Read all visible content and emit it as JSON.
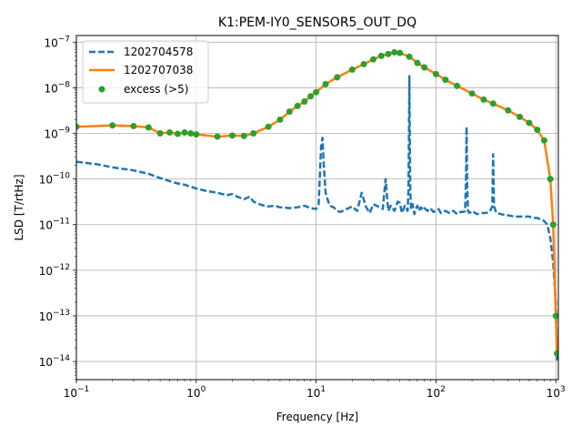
{
  "colors": {
    "reference": "#1f77b4",
    "current": "#ff7f0e",
    "excess": "#2ca02c",
    "grid": "#b0b0b0",
    "axes": "#000000",
    "background": "#ffffff"
  },
  "chart_data": {
    "type": "line",
    "title": "K1:PEM-IY0_SENSOR5_OUT_DQ",
    "xlabel": "Frequency [Hz]",
    "ylabel": "LSD [T/rtHz]",
    "xscale": "log",
    "yscale": "log",
    "xlim": [
      0.1,
      1050
    ],
    "ylim": [
      4e-15,
      1.4e-07
    ],
    "grid": true,
    "legend_position": "top-left",
    "xticks": [
      {
        "value": 0.1,
        "base": "10",
        "exp": "−1"
      },
      {
        "value": 1,
        "base": "10",
        "exp": "0"
      },
      {
        "value": 10,
        "base": "10",
        "exp": "1"
      },
      {
        "value": 100,
        "base": "10",
        "exp": "2"
      },
      {
        "value": 1000,
        "base": "10",
        "exp": "3"
      }
    ],
    "yticks": [
      {
        "value": 1e-14,
        "base": "10",
        "exp": "−14"
      },
      {
        "value": 1e-13,
        "base": "10",
        "exp": "−13"
      },
      {
        "value": 1e-12,
        "base": "10",
        "exp": "−12"
      },
      {
        "value": 1e-11,
        "base": "10",
        "exp": "−11"
      },
      {
        "value": 1e-10,
        "base": "10",
        "exp": "−10"
      },
      {
        "value": 1e-09,
        "base": "10",
        "exp": "−9"
      },
      {
        "value": 1e-08,
        "base": "10",
        "exp": "−8"
      },
      {
        "value": 1e-07,
        "base": "10",
        "exp": "−7"
      }
    ],
    "series": [
      {
        "name": "1202704578",
        "style": "dashed",
        "x": [
          0.1,
          0.15,
          0.2,
          0.3,
          0.4,
          0.5,
          0.6,
          0.7,
          0.8,
          0.9,
          1,
          1.2,
          1.5,
          1.8,
          2,
          2.2,
          2.5,
          2.8,
          3,
          3.5,
          4,
          4.5,
          5,
          6,
          7,
          8,
          9,
          10,
          10.5,
          11,
          11.3,
          11.6,
          12,
          12.5,
          13,
          14,
          15,
          16,
          18,
          20,
          22,
          24,
          26,
          28,
          30,
          33,
          36,
          38,
          40,
          42,
          45,
          48,
          50,
          52,
          55,
          58,
          59,
          60,
          61,
          62,
          64,
          66,
          68,
          70,
          72,
          75,
          78,
          80,
          85,
          90,
          95,
          100,
          105,
          110,
          115,
          120,
          130,
          140,
          150,
          160,
          170,
          175,
          178,
          180,
          182,
          185,
          190,
          200,
          220,
          240,
          260,
          280,
          295,
          300,
          305,
          320,
          350,
          380,
          400,
          450,
          500,
          550,
          600,
          650,
          700,
          750,
          800,
          850,
          900,
          950,
          1000,
          1024
        ],
        "y": [
          2.4e-10,
          2.1e-10,
          1.8e-10,
          1.55e-10,
          1.3e-10,
          1.05e-10,
          9e-11,
          8e-11,
          7.5e-11,
          6.8e-11,
          6.2e-11,
          5.5e-11,
          5e-11,
          4.4e-11,
          4.7e-11,
          4.1e-11,
          3.6e-11,
          4.1e-11,
          3.2e-11,
          2.7e-11,
          2.5e-11,
          2.6e-11,
          2.4e-11,
          2.3e-11,
          2.4e-11,
          2.6e-11,
          2.3e-11,
          2.2e-11,
          2.8e-11,
          5e-10,
          8e-10,
          2e-10,
          5e-11,
          3.5e-11,
          2.6e-11,
          2.4e-11,
          2e-11,
          1.9e-11,
          2.2e-11,
          2.5e-11,
          2e-11,
          5e-11,
          2.5e-11,
          1.8e-11,
          2.8e-11,
          2.5e-11,
          2.2e-11,
          1e-10,
          2e-11,
          2.6e-11,
          2e-11,
          3.2e-11,
          3e-11,
          1.8e-11,
          2.6e-11,
          2e-11,
          6e-11,
          1.8e-08,
          6e-11,
          2.2e-11,
          2.8e-11,
          1.7e-11,
          2.2e-11,
          2.6e-11,
          2e-11,
          2.4e-11,
          2.1e-11,
          2.3e-11,
          2e-11,
          2.3e-11,
          1.9e-11,
          2e-11,
          2.2e-11,
          1.8e-11,
          1.9e-11,
          2e-11,
          1.8e-11,
          2e-11,
          1.7e-11,
          1.9e-11,
          1.9e-11,
          2e-11,
          9e-11,
          1.4e-09,
          9e-11,
          2e-11,
          1.8e-11,
          2e-11,
          1.7e-11,
          1.8e-11,
          1.8e-11,
          1.9e-11,
          2.5e-11,
          3.5e-10,
          2.5e-11,
          1.8e-11,
          1.7e-11,
          1.6e-11,
          1.6e-11,
          1.5e-11,
          1.5e-11,
          1.5e-11,
          1.5e-11,
          1.4e-11,
          1.4e-11,
          1.3e-11,
          1.2e-11,
          1e-11,
          5e-12,
          1.5e-12,
          2e-13,
          1e-14
        ]
      },
      {
        "name": "1202707038",
        "style": "solid",
        "x": [
          0.1,
          0.2,
          0.3,
          0.4,
          0.5,
          0.6,
          0.7,
          0.8,
          0.9,
          1,
          1.5,
          2,
          2.5,
          3,
          4,
          5,
          6,
          7,
          8,
          9,
          10,
          12,
          15,
          20,
          25,
          30,
          35,
          40,
          45,
          50,
          60,
          70,
          80,
          100,
          120,
          150,
          200,
          250,
          300,
          400,
          500,
          600,
          700,
          800,
          900,
          950,
          1000,
          1024
        ],
        "y": [
          1.4e-09,
          1.5e-09,
          1.45e-09,
          1.35e-09,
          1e-09,
          1.05e-09,
          9.8e-10,
          1.05e-09,
          1e-09,
          9.5e-10,
          8.5e-10,
          9e-10,
          8.8e-10,
          1e-09,
          1.4e-09,
          2e-09,
          3e-09,
          4e-09,
          5e-09,
          6.5e-09,
          8e-09,
          1.2e-08,
          1.7e-08,
          2.5e-08,
          3.3e-08,
          4.2e-08,
          5e-08,
          5.5e-08,
          6e-08,
          5.8e-08,
          4.8e-08,
          3.5e-08,
          2.8e-08,
          2e-08,
          1.5e-08,
          1.1e-08,
          7.5e-09,
          5.5e-09,
          4.5e-09,
          3.2e-09,
          2.3e-09,
          1.7e-09,
          1.2e-09,
          7e-10,
          1e-10,
          1e-11,
          1e-13,
          1.5e-14
        ]
      },
      {
        "name": "excess (>5)",
        "style": "points",
        "x": [
          0.1,
          0.2,
          0.3,
          0.4,
          0.5,
          0.6,
          0.7,
          0.8,
          0.9,
          1,
          1.5,
          2,
          2.5,
          3,
          4,
          5,
          6,
          7,
          8,
          9,
          10,
          12,
          15,
          20,
          25,
          30,
          35,
          40,
          45,
          50,
          60,
          70,
          80,
          100,
          120,
          150,
          200,
          250,
          300,
          400,
          500,
          600,
          700,
          800,
          900,
          950,
          1000,
          1024
        ],
        "y": [
          1.4e-09,
          1.5e-09,
          1.45e-09,
          1.35e-09,
          1e-09,
          1.05e-09,
          9.8e-10,
          1.05e-09,
          1e-09,
          9.5e-10,
          8.5e-10,
          9e-10,
          8.8e-10,
          1e-09,
          1.4e-09,
          2e-09,
          3e-09,
          4e-09,
          5e-09,
          6.5e-09,
          8e-09,
          1.2e-08,
          1.7e-08,
          2.5e-08,
          3.3e-08,
          4.2e-08,
          5e-08,
          5.5e-08,
          6e-08,
          5.8e-08,
          4.8e-08,
          3.5e-08,
          2.8e-08,
          2e-08,
          1.5e-08,
          1.1e-08,
          7.5e-09,
          5.5e-09,
          4.5e-09,
          3.2e-09,
          2.3e-09,
          1.7e-09,
          1.2e-09,
          7e-10,
          1e-10,
          1e-11,
          1e-13,
          1.5e-14
        ]
      }
    ]
  }
}
